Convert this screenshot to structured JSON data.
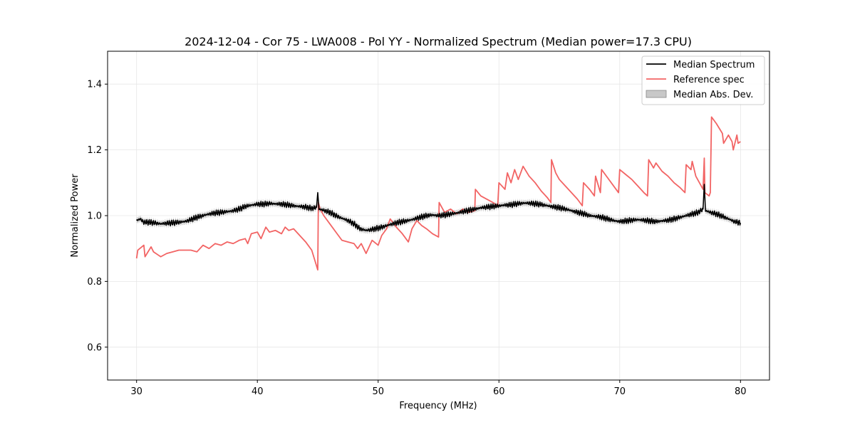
{
  "chart_data": {
    "type": "line",
    "title": "2024-12-04 - Cor 75 - LWA008 - Pol YY - Normalized Spectrum (Median power=17.3 CPU)",
    "xlabel": "Frequency (MHz)",
    "ylabel": "Normalized Power",
    "xlim": [
      27.6,
      82.4
    ],
    "ylim": [
      0.5,
      1.5
    ],
    "xticks": [
      30,
      40,
      50,
      60,
      70,
      80
    ],
    "xtick_labels": [
      "30",
      "40",
      "50",
      "60",
      "70",
      "80"
    ],
    "yticks": [
      0.6,
      0.8,
      1.0,
      1.2,
      1.4
    ],
    "ytick_labels": [
      "0.6",
      "0.8",
      "1.0",
      "1.2",
      "1.4"
    ],
    "grid": true,
    "legend_position": "top-right",
    "legend": [
      {
        "label": "Median Spectrum",
        "color": "#000000",
        "kind": "line"
      },
      {
        "label": "Reference spec",
        "color": "#f26464",
        "kind": "line"
      },
      {
        "label": "Median Abs. Dev.",
        "color": "#c8c8c8",
        "kind": "band"
      }
    ],
    "series": [
      {
        "name": "Median Spectrum",
        "color": "#000000",
        "x": [
          30.0,
          30.3,
          30.6,
          31.0,
          31.5,
          32.0,
          32.5,
          33.0,
          33.5,
          34.0,
          34.5,
          35.0,
          35.5,
          36.0,
          36.5,
          37.0,
          37.5,
          38.0,
          38.5,
          39.0,
          39.5,
          40.0,
          40.5,
          41.0,
          41.5,
          42.0,
          42.5,
          43.0,
          43.5,
          44.0,
          44.5,
          44.9,
          45.0,
          45.1,
          45.5,
          46.0,
          46.5,
          47.0,
          47.5,
          48.0,
          48.5,
          49.0,
          49.5,
          50.0,
          50.5,
          51.0,
          51.5,
          52.0,
          52.5,
          53.0,
          53.5,
          54.0,
          54.5,
          55.0,
          55.5,
          56.0,
          56.5,
          57.0,
          57.5,
          58.0,
          58.5,
          59.0,
          59.5,
          60.0,
          60.5,
          61.0,
          61.5,
          62.0,
          62.5,
          63.0,
          63.5,
          64.0,
          64.5,
          65.0,
          65.5,
          66.0,
          66.5,
          67.0,
          67.5,
          68.0,
          68.5,
          69.0,
          69.5,
          70.0,
          70.5,
          71.0,
          71.5,
          72.0,
          72.5,
          73.0,
          73.5,
          74.0,
          74.5,
          75.0,
          75.5,
          76.0,
          76.5,
          76.9,
          77.0,
          77.1,
          77.5,
          78.0,
          78.5,
          79.0,
          79.5,
          80.0
        ],
        "values": [
          0.985,
          0.99,
          0.98,
          0.98,
          0.978,
          0.975,
          0.977,
          0.978,
          0.98,
          0.982,
          0.988,
          0.995,
          1.0,
          1.005,
          1.008,
          1.01,
          1.012,
          1.015,
          1.02,
          1.028,
          1.032,
          1.035,
          1.035,
          1.037,
          1.036,
          1.035,
          1.033,
          1.03,
          1.028,
          1.026,
          1.022,
          1.025,
          1.07,
          1.02,
          1.016,
          1.01,
          1.0,
          0.992,
          0.985,
          0.975,
          0.96,
          0.955,
          0.958,
          0.962,
          0.967,
          0.973,
          0.978,
          0.982,
          0.985,
          0.99,
          0.995,
          1.0,
          1.002,
          1.0,
          1.002,
          1.005,
          1.008,
          1.012,
          1.016,
          1.02,
          1.024,
          1.026,
          1.028,
          1.03,
          1.032,
          1.033,
          1.036,
          1.038,
          1.038,
          1.036,
          1.034,
          1.03,
          1.027,
          1.024,
          1.02,
          1.015,
          1.01,
          1.006,
          1.0,
          0.998,
          0.995,
          0.99,
          0.985,
          0.982,
          0.984,
          0.986,
          0.988,
          0.986,
          0.984,
          0.982,
          0.984,
          0.986,
          0.99,
          0.995,
          1.0,
          1.005,
          1.01,
          1.02,
          1.095,
          1.015,
          1.01,
          1.005,
          0.998,
          0.99,
          0.982,
          0.978
        ]
      },
      {
        "name": "Reference spec",
        "color": "#f26464",
        "x": [
          30.0,
          30.1,
          30.6,
          30.7,
          31.2,
          31.4,
          31.8,
          32.0,
          32.5,
          33.0,
          33.5,
          34.0,
          34.5,
          35.0,
          35.5,
          36.0,
          36.5,
          37.0,
          37.5,
          38.0,
          38.5,
          39.0,
          39.2,
          39.5,
          40.0,
          40.3,
          40.7,
          41.0,
          41.5,
          42.0,
          42.3,
          42.6,
          43.0,
          43.5,
          44.0,
          44.5,
          45.0,
          45.05,
          45.2,
          45.5,
          46.0,
          46.5,
          47.0,
          47.5,
          48.0,
          48.3,
          48.6,
          49.0,
          49.5,
          50.0,
          50.3,
          50.7,
          51.0,
          51.5,
          52.0,
          52.5,
          52.8,
          53.2,
          53.6,
          54.0,
          54.5,
          55.0,
          55.05,
          55.5,
          56.0,
          56.5,
          57.0,
          57.5,
          58.0,
          58.05,
          58.5,
          59.0,
          59.5,
          59.9,
          60.0,
          60.5,
          60.7,
          61.0,
          61.3,
          61.6,
          62.0,
          62.5,
          63.0,
          63.5,
          64.0,
          64.3,
          64.35,
          64.7,
          65.0,
          65.5,
          66.0,
          66.5,
          66.9,
          67.0,
          67.5,
          67.9,
          68.0,
          68.4,
          68.5,
          69.0,
          69.5,
          69.9,
          70.0,
          70.5,
          71.0,
          71.5,
          72.0,
          72.3,
          72.4,
          72.8,
          73.0,
          73.5,
          74.0,
          74.5,
          75.0,
          75.4,
          75.5,
          75.9,
          76.0,
          76.3,
          76.9,
          77.0,
          77.05,
          77.4,
          77.5,
          77.6,
          78.0,
          78.5,
          78.6,
          79.0,
          79.3,
          79.4,
          79.7,
          79.8,
          80.0
        ],
        "values": [
          0.87,
          0.895,
          0.91,
          0.875,
          0.905,
          0.89,
          0.88,
          0.875,
          0.885,
          0.89,
          0.895,
          0.895,
          0.895,
          0.89,
          0.91,
          0.9,
          0.915,
          0.91,
          0.92,
          0.915,
          0.925,
          0.93,
          0.915,
          0.945,
          0.95,
          0.93,
          0.965,
          0.95,
          0.955,
          0.945,
          0.965,
          0.955,
          0.96,
          0.94,
          0.92,
          0.895,
          0.835,
          1.04,
          1.02,
          1.0,
          0.975,
          0.95,
          0.925,
          0.92,
          0.915,
          0.9,
          0.915,
          0.885,
          0.925,
          0.91,
          0.94,
          0.96,
          0.99,
          0.965,
          0.945,
          0.92,
          0.96,
          0.985,
          0.97,
          0.96,
          0.945,
          0.935,
          1.04,
          1.01,
          1.02,
          1.005,
          1.02,
          1.01,
          1.015,
          1.08,
          1.06,
          1.05,
          1.04,
          1.03,
          1.1,
          1.08,
          1.13,
          1.1,
          1.14,
          1.11,
          1.15,
          1.12,
          1.1,
          1.075,
          1.055,
          1.04,
          1.17,
          1.13,
          1.11,
          1.09,
          1.07,
          1.05,
          1.03,
          1.1,
          1.08,
          1.06,
          1.12,
          1.07,
          1.14,
          1.115,
          1.09,
          1.07,
          1.14,
          1.125,
          1.11,
          1.09,
          1.07,
          1.06,
          1.17,
          1.145,
          1.16,
          1.135,
          1.12,
          1.1,
          1.085,
          1.07,
          1.155,
          1.14,
          1.165,
          1.12,
          1.08,
          1.175,
          1.07,
          1.06,
          1.07,
          1.3,
          1.28,
          1.25,
          1.22,
          1.245,
          1.225,
          1.2,
          1.245,
          1.22,
          1.225
        ]
      }
    ],
    "mad_band": {
      "name": "Median Abs. Dev.",
      "color": "#c8c8c8",
      "halfwidth": 0.009
    }
  }
}
